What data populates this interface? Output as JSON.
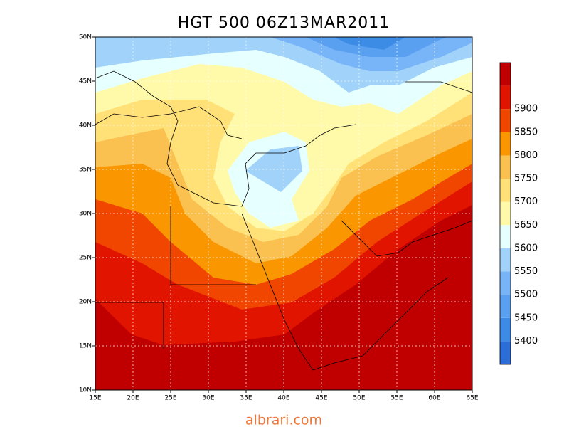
{
  "title": "HGT 500 06Z13MAR2011",
  "map": {
    "lon_labels": [
      "15E",
      "20E",
      "25E",
      "30E",
      "35E",
      "40E",
      "45E",
      "50E",
      "55E",
      "60E",
      "65E"
    ],
    "lat_labels": [
      "10N",
      "15N",
      "20N",
      "25N",
      "30N",
      "35N",
      "40N",
      "45N",
      "50N"
    ]
  },
  "colorbar": {
    "levels": [
      5400,
      5450,
      5500,
      5550,
      5600,
      5650,
      5700,
      5750,
      5800,
      5850,
      5900
    ],
    "colors": [
      "#2a6ed6",
      "#3c8ce6",
      "#5aa0f0",
      "#78b4f8",
      "#a0d2fa",
      "#e6ffff",
      "#fffaaa",
      "#ffe178",
      "#fac050",
      "#fa9600",
      "#f04600",
      "#e11400",
      "#c00000"
    ]
  },
  "watermark": "albrari.com"
}
